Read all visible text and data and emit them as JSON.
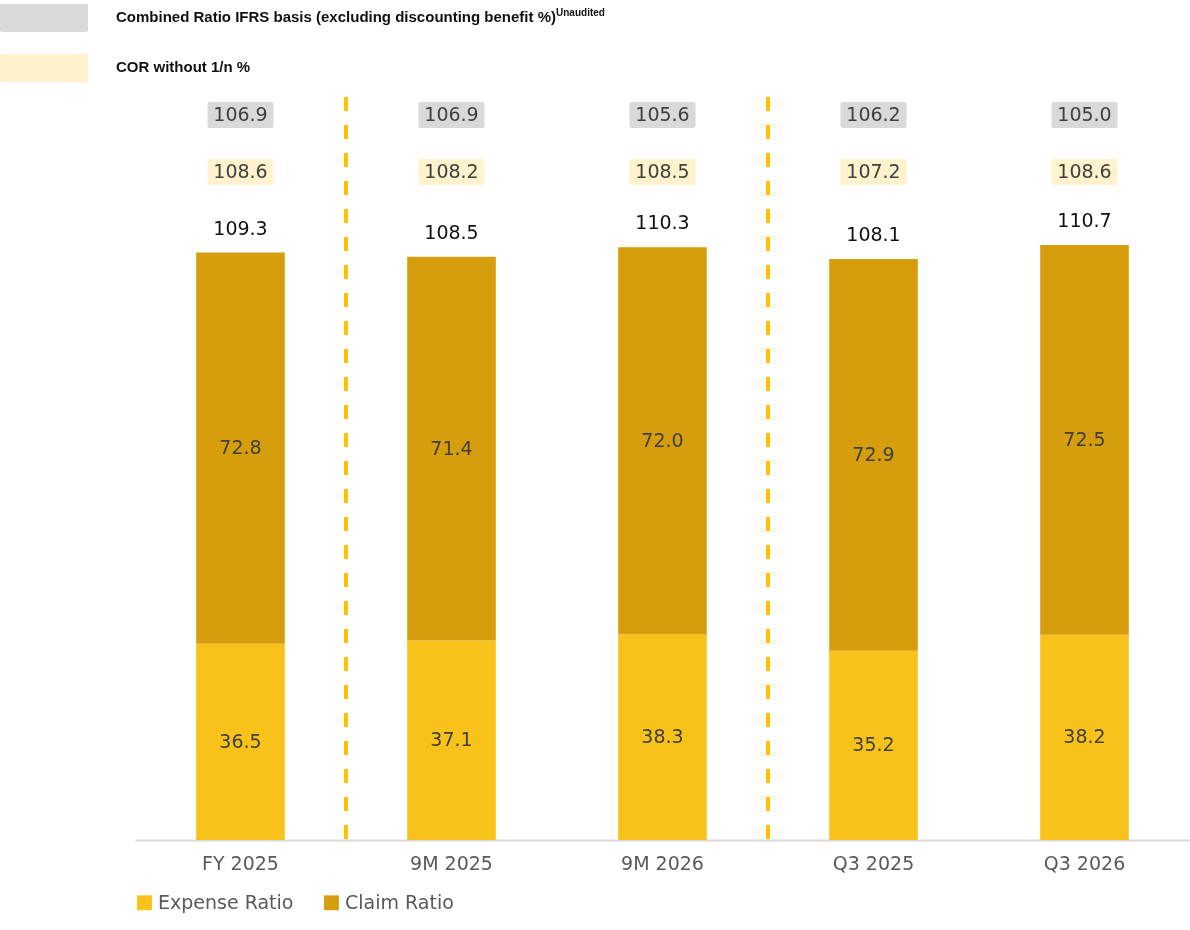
{
  "chart_data": {
    "type": "bar",
    "stacked": true,
    "categories": [
      "FY 2025",
      "9M 2025",
      "9M 2026",
      "Q3 2025",
      "Q3 2026"
    ],
    "series": [
      {
        "name": "Expense Ratio",
        "color": "#f8c21a",
        "values": [
          36.5,
          37.1,
          38.3,
          35.2,
          38.2
        ],
        "value_labels": [
          "36.5",
          "37.1",
          "38.3",
          "35.2",
          "38.2"
        ]
      },
      {
        "name": "Claim Ratio",
        "color": "#d69e0c",
        "values": [
          72.8,
          71.4,
          72.0,
          72.9,
          72.5
        ],
        "value_labels": [
          "72.8",
          "71.4",
          "72.0",
          "72.9",
          "72.5"
        ]
      }
    ],
    "totals": [
      "109.3",
      "108.5",
      "110.3",
      "108.1",
      "110.7"
    ],
    "tick_labels": "x",
    "legend": "bottom",
    "annotations": [
      "Combined Ratio IFRS basis (excluding discounting benefit %)$^{Unaudited}$",
      "COR without 1/n %",
      "106.9",
      "106.9",
      "105.6",
      "106.2",
      "105.0",
      "108.6",
      "108.2",
      "108.5",
      "107.2",
      "108.6"
    ]
  }
}
